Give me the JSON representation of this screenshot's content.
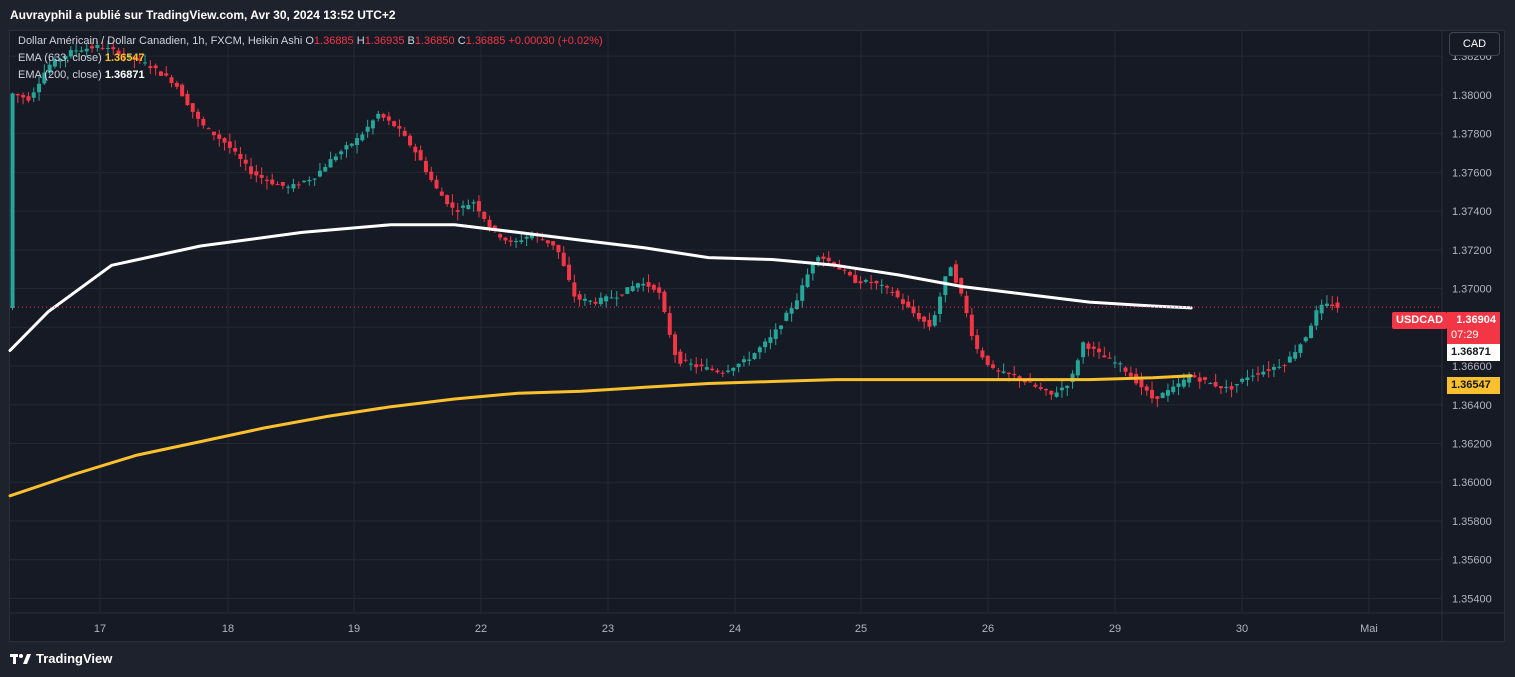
{
  "header": {
    "publisher": "Auvrayphil a publié sur TradingView.com, Avr 30, 2024 13:52 UTC+2"
  },
  "legend": {
    "title": "Dollar Américain / Dollar Canadien, 1h, FXCM, Heikin Ashi",
    "o_label": "O",
    "o_value": "1.36885",
    "h_label": "H",
    "h_value": "1.36935",
    "b_label": "B",
    "b_value": "1.36850",
    "c_label": "C",
    "c_value": "1.36885",
    "change": "+0.00030 (+0.02%)",
    "ema1_label": "EMA (633, close)",
    "ema1_value": "1.36547",
    "ema2_label": "EMA (200, close)",
    "ema2_value": "1.36871"
  },
  "currency_button": "CAD",
  "price_tags": {
    "symbol": "USDCAD",
    "last_price": "1.36904",
    "countdown": "07:29",
    "ema200": "1.36871",
    "ema633": "1.36547"
  },
  "footer": {
    "brand": "TradingView"
  },
  "colors": {
    "up": "#26a69a",
    "down": "#f23645",
    "ema200": "#ffffff",
    "ema633": "#fbc02d",
    "background": "#161a25",
    "grid": "#242833"
  },
  "chart_data": {
    "type": "candlestick",
    "symbol": "USDCAD",
    "interval": "1h",
    "ylim": [
      1.3533,
      1.3833
    ],
    "y_ticks": [
      "1.35400",
      "1.35600",
      "1.35800",
      "1.36000",
      "1.36200",
      "1.36400",
      "1.36600",
      "1.36800",
      "1.37000",
      "1.37200",
      "1.37400",
      "1.37600",
      "1.37800",
      "1.38000",
      "1.38200"
    ],
    "x_ticks": [
      "17",
      "18",
      "19",
      "22",
      "23",
      "24",
      "25",
      "26",
      "29",
      "30",
      "Mai"
    ],
    "last_price": 1.36904,
    "series": [
      {
        "name": "EMA (200, close)",
        "color": "#ffffff",
        "points": [
          [
            0,
            1.3668
          ],
          [
            0.3,
            1.3688
          ],
          [
            0.8,
            1.3712
          ],
          [
            1.5,
            1.3722
          ],
          [
            2.3,
            1.3729
          ],
          [
            3.0,
            1.3733
          ],
          [
            3.5,
            1.3733
          ],
          [
            4.0,
            1.3729
          ],
          [
            4.5,
            1.3725
          ],
          [
            5.0,
            1.3721
          ],
          [
            5.5,
            1.3716
          ],
          [
            6.0,
            1.3715
          ],
          [
            6.5,
            1.3712
          ],
          [
            7.0,
            1.3707
          ],
          [
            7.5,
            1.3701
          ],
          [
            8.0,
            1.3697
          ],
          [
            8.5,
            1.3693
          ],
          [
            9.0,
            1.3691
          ],
          [
            9.3,
            1.369
          ]
        ]
      },
      {
        "name": "EMA (633, close)",
        "color": "#fbc02d",
        "points": [
          [
            0,
            1.3593
          ],
          [
            0.5,
            1.3604
          ],
          [
            1.0,
            1.3614
          ],
          [
            1.5,
            1.3621
          ],
          [
            2.0,
            1.3628
          ],
          [
            2.5,
            1.3634
          ],
          [
            3.0,
            1.3639
          ],
          [
            3.5,
            1.3643
          ],
          [
            4.0,
            1.3646
          ],
          [
            4.5,
            1.3647
          ],
          [
            5.0,
            1.3649
          ],
          [
            5.5,
            1.3651
          ],
          [
            6.0,
            1.3652
          ],
          [
            6.5,
            1.3653
          ],
          [
            7.0,
            1.3653
          ],
          [
            7.5,
            1.3653
          ],
          [
            8.0,
            1.3653
          ],
          [
            8.5,
            1.3653
          ],
          [
            9.0,
            1.3654
          ],
          [
            9.3,
            1.3655
          ]
        ]
      }
    ],
    "price_path": [
      [
        0,
        1.3801
      ],
      [
        0.15,
        1.3798
      ],
      [
        0.3,
        1.3815
      ],
      [
        0.5,
        1.3823
      ],
      [
        0.7,
        1.3825
      ],
      [
        0.85,
        1.3822
      ],
      [
        1.1,
        1.3815
      ],
      [
        1.3,
        1.3806
      ],
      [
        1.5,
        1.3785
      ],
      [
        1.7,
        1.3775
      ],
      [
        1.9,
        1.376
      ],
      [
        2.05,
        1.3755
      ],
      [
        2.2,
        1.3752
      ],
      [
        2.4,
        1.3758
      ],
      [
        2.55,
        1.3768
      ],
      [
        2.75,
        1.3778
      ],
      [
        2.9,
        1.379
      ],
      [
        3.05,
        1.3783
      ],
      [
        3.2,
        1.377
      ],
      [
        3.35,
        1.3752
      ],
      [
        3.5,
        1.374
      ],
      [
        3.65,
        1.3745
      ],
      [
        3.8,
        1.373
      ],
      [
        3.95,
        1.3723
      ],
      [
        4.1,
        1.3728
      ],
      [
        4.3,
        1.3722
      ],
      [
        4.45,
        1.3695
      ],
      [
        4.6,
        1.3693
      ],
      [
        4.8,
        1.3697
      ],
      [
        4.95,
        1.3703
      ],
      [
        5.1,
        1.37
      ],
      [
        5.25,
        1.3663
      ],
      [
        5.4,
        1.366
      ],
      [
        5.6,
        1.3657
      ],
      [
        5.8,
        1.3663
      ],
      [
        6.0,
        1.3675
      ],
      [
        6.2,
        1.3695
      ],
      [
        6.35,
        1.3718
      ],
      [
        6.5,
        1.3712
      ],
      [
        6.65,
        1.3704
      ],
      [
        6.8,
        1.3703
      ],
      [
        6.95,
        1.3698
      ],
      [
        7.1,
        1.3688
      ],
      [
        7.25,
        1.368
      ],
      [
        7.4,
        1.3713
      ],
      [
        7.5,
        1.3695
      ],
      [
        7.6,
        1.367
      ],
      [
        7.75,
        1.3657
      ],
      [
        7.9,
        1.3655
      ],
      [
        8.05,
        1.365
      ],
      [
        8.2,
        1.3645
      ],
      [
        8.35,
        1.3652
      ],
      [
        8.45,
        1.3672
      ],
      [
        8.6,
        1.3665
      ],
      [
        8.75,
        1.366
      ],
      [
        8.9,
        1.365
      ],
      [
        9.0,
        1.3643
      ],
      [
        9.15,
        1.3648
      ],
      [
        9.3,
        1.3655
      ],
      [
        9.45,
        1.3651
      ],
      [
        9.6,
        1.3648
      ],
      [
        9.75,
        1.3655
      ],
      [
        9.9,
        1.3658
      ],
      [
        10.05,
        1.3662
      ],
      [
        10.2,
        1.3675
      ],
      [
        10.3,
        1.369
      ],
      [
        10.4,
        1.3692
      ],
      [
        10.47,
        1.369
      ]
    ]
  }
}
